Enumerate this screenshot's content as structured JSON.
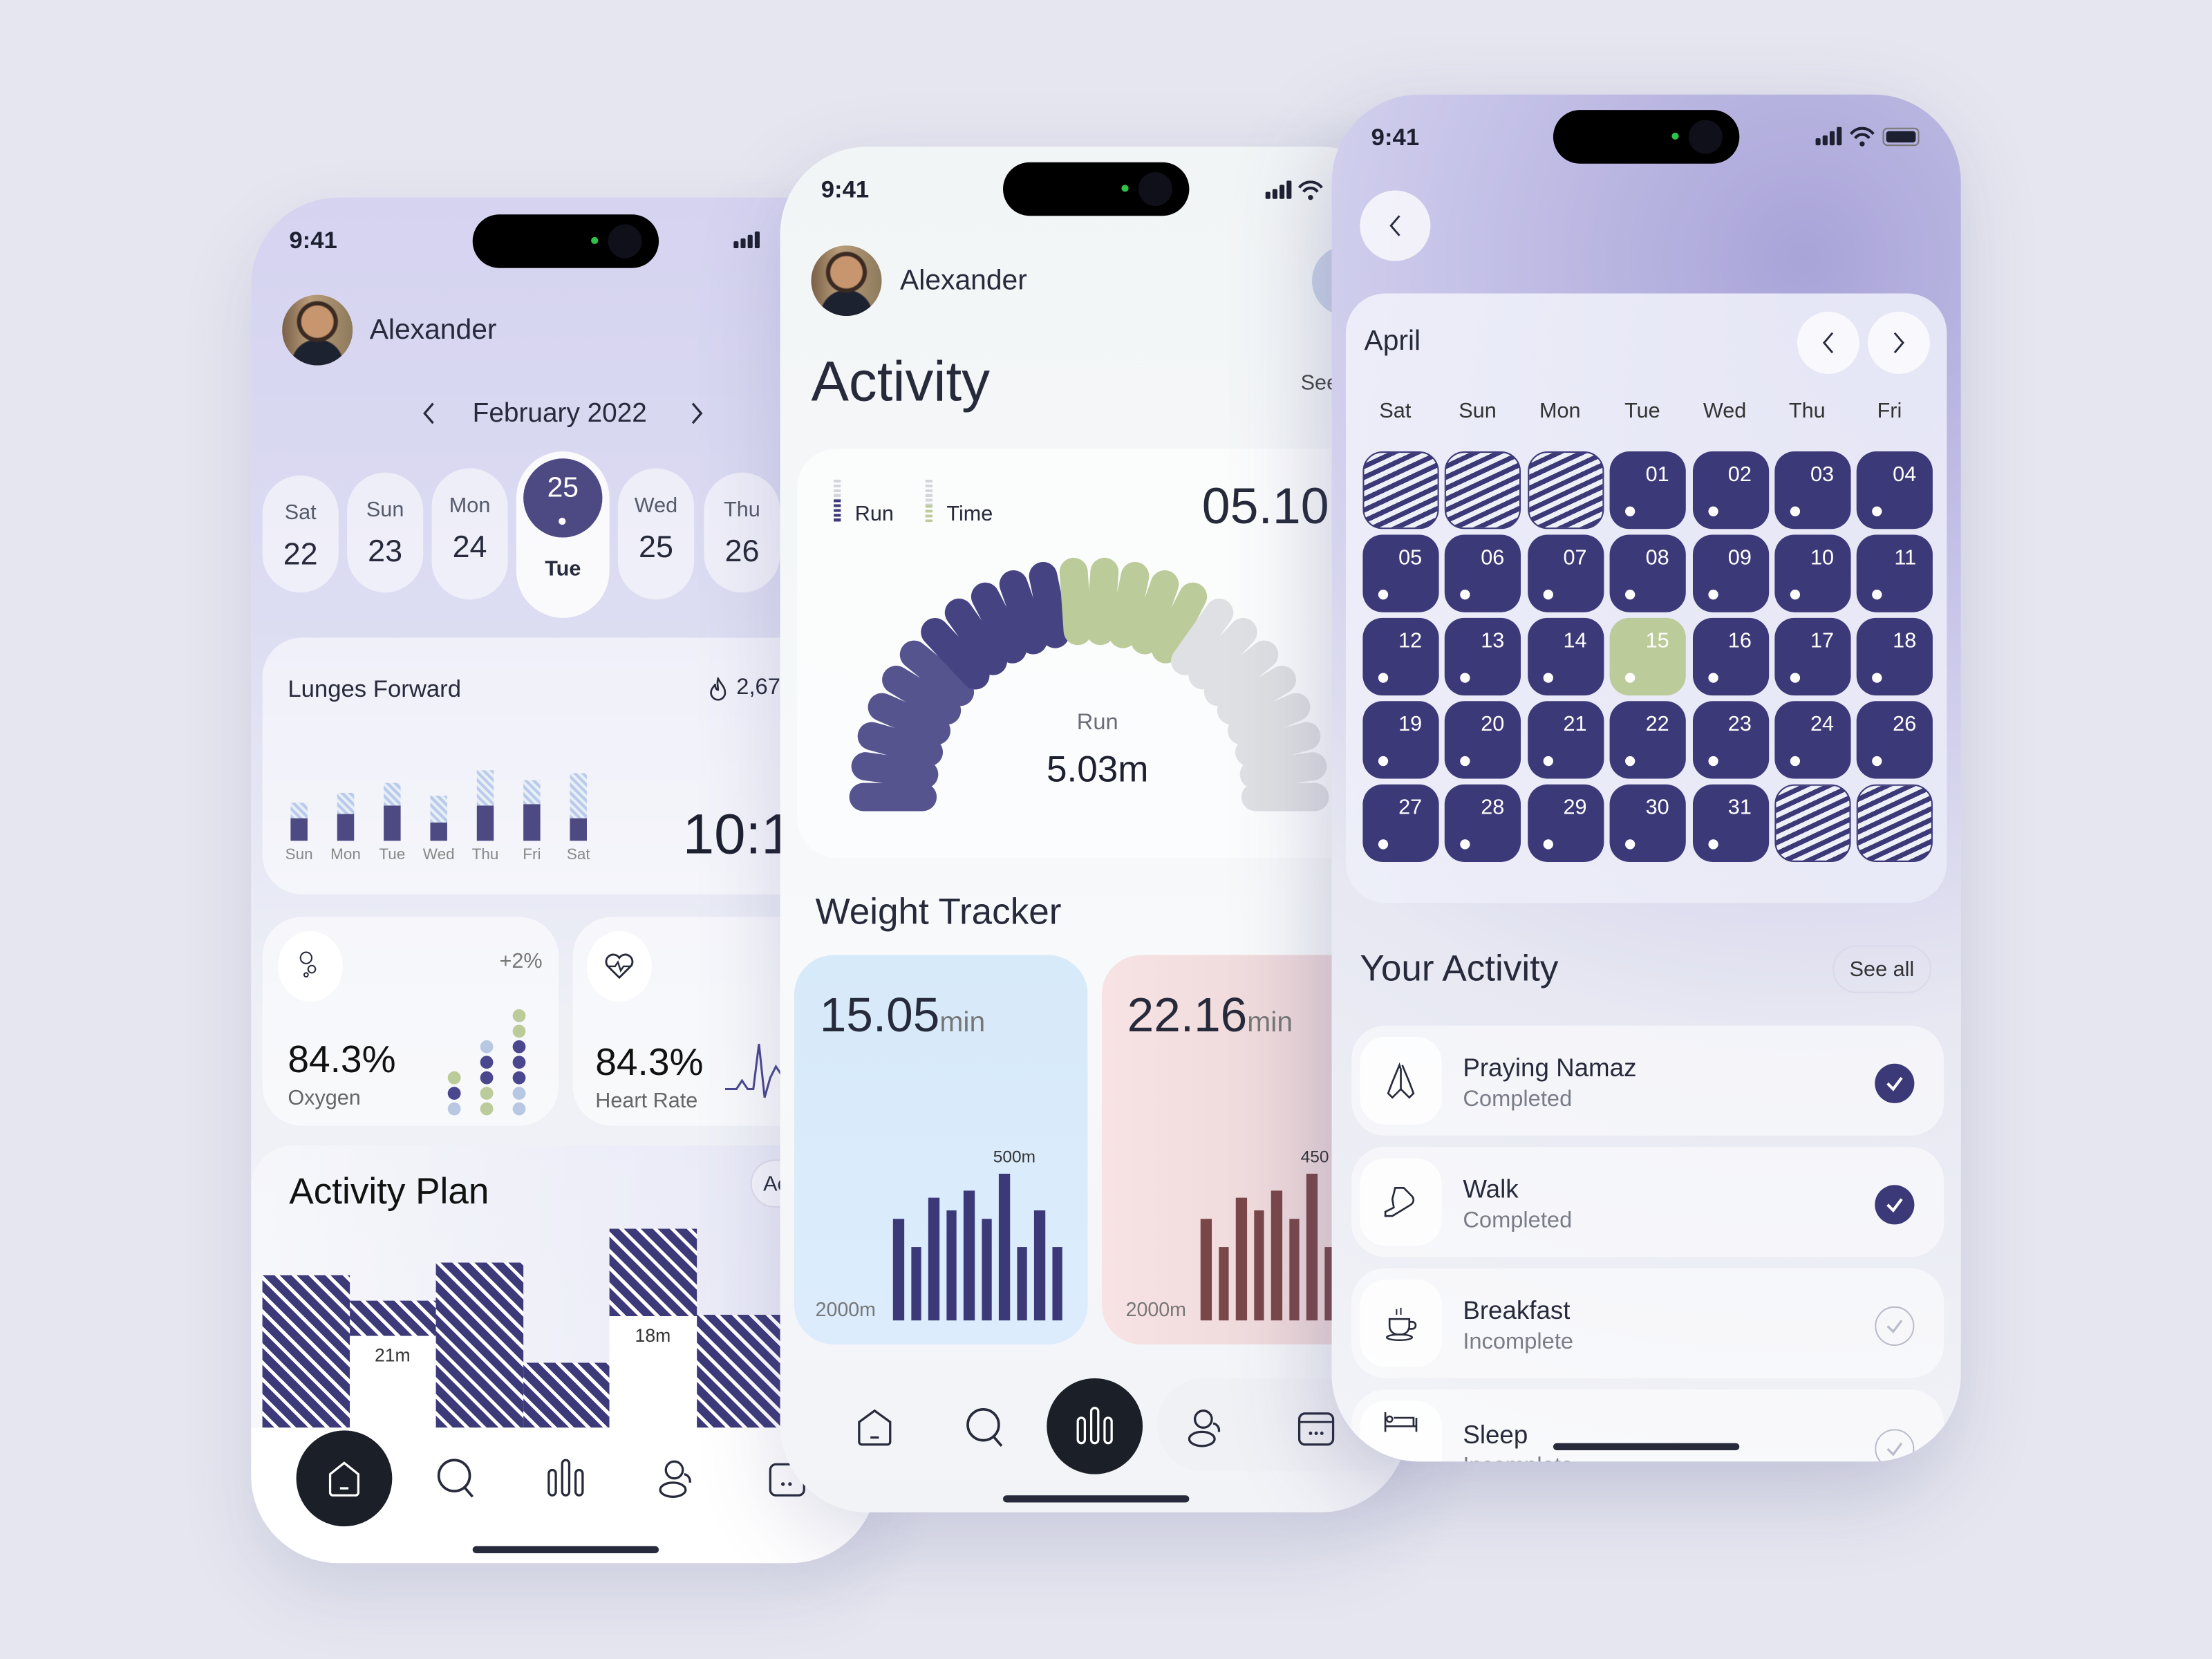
{
  "status": {
    "time": "9:41"
  },
  "left": {
    "user_name": "Alexander",
    "month_label": "February 2022",
    "dates": [
      {
        "day": "Sat",
        "num": "22"
      },
      {
        "day": "Sun",
        "num": "23"
      },
      {
        "day": "Mon",
        "num": "24"
      },
      {
        "day": "Tue",
        "num": "25",
        "selected": true
      },
      {
        "day": "Wed",
        "num": "25"
      },
      {
        "day": "Thu",
        "num": "26"
      }
    ],
    "lunges": {
      "title": "Lunges Forward",
      "calories": "2,67",
      "time": "10:1",
      "chart_data": {
        "type": "bar",
        "categories": [
          "Sun",
          "Mon",
          "Tue",
          "Wed",
          "Thu",
          "Fri",
          "Sat"
        ],
        "series": [
          {
            "values": [
              16,
              19,
              25,
              13,
              25,
              26,
              16
            ]
          },
          {
            "values": [
              11,
              15,
              16,
              19,
              25,
              17,
              32
            ]
          }
        ],
        "stacked": true
      }
    },
    "oxygen": {
      "value": "84.3%",
      "label": "Oxygen",
      "change": "+2%",
      "dots": [
        [
          "#bccb9a",
          "#4a478f",
          "#b8c8e3"
        ],
        [
          "#b8c8e3",
          "#4a478f",
          "#4a478f",
          "#bccb9a",
          "#bccb9a"
        ],
        [
          "#bccb9a",
          "#bccb9a",
          "#4a478f",
          "#4a478f",
          "#4a478f",
          "#b8c8e3",
          "#b8c8e3"
        ]
      ]
    },
    "heart": {
      "value": "84.3%",
      "label": "Heart Rate"
    },
    "plan": {
      "title": "Activity Plan",
      "action": "Ac",
      "chart_data": {
        "type": "bar",
        "values": [
          108,
          90,
          117,
          46,
          141,
          80
        ],
        "labels": [
          "",
          "21m",
          "",
          "",
          "18m",
          ""
        ]
      }
    }
  },
  "middle": {
    "user_name": "Alexander",
    "title": "Activity",
    "see": "See",
    "gauge": {
      "legend": [
        "Run",
        "Time"
      ],
      "value": "05.10",
      "center_label": "Run",
      "center_value": "5.03m",
      "chart_data": {
        "type": "gauge",
        "total_segments": 24,
        "run_segments": 11,
        "time_segments": 5
      }
    },
    "weight_title": "Weight Tracker",
    "cards": [
      {
        "value": "15.05",
        "unit": "min",
        "peak_label": "500m",
        "base_label": "2000m",
        "color": "#3c3978",
        "chart_data": {
          "type": "bar",
          "values": [
            69,
            50,
            84,
            75,
            88,
            69,
            100,
            50,
            75,
            50
          ]
        }
      },
      {
        "value": "22.16",
        "unit": "min",
        "peak_label": "450",
        "base_label": "2000m",
        "color": "#7a4749",
        "chart_data": {
          "type": "bar",
          "values": [
            69,
            50,
            84,
            75,
            88,
            69,
            100,
            50,
            75,
            50
          ]
        }
      }
    ]
  },
  "right": {
    "month": "April",
    "weekdays": [
      "Sat",
      "Sun",
      "Mon",
      "Tue",
      "Wed",
      "Thu",
      "Fri"
    ],
    "cells": [
      "",
      "",
      "",
      "01",
      "02",
      "03",
      "04",
      "05",
      "06",
      "07",
      "08",
      "09",
      "10",
      "11",
      "12",
      "13",
      "14",
      "15",
      "16",
      "17",
      "18",
      "19",
      "20",
      "21",
      "22",
      "23",
      "24",
      "26",
      "27",
      "28",
      "29",
      "30",
      "31",
      "",
      ""
    ],
    "highlight": "15",
    "activity_title": "Your Activity",
    "see_all": "See all",
    "items": [
      {
        "title": "Praying Namaz",
        "status": "Completed",
        "done": true
      },
      {
        "title": "Walk",
        "status": "Completed",
        "done": true
      },
      {
        "title": "Breakfast",
        "status": "Incomplete",
        "done": false
      },
      {
        "title": "Sleep",
        "status": "Incomplete",
        "done": false
      }
    ]
  },
  "colors": {
    "primary": "#3c3978",
    "green": "#bccb9a",
    "dark": "#1b1f27"
  }
}
